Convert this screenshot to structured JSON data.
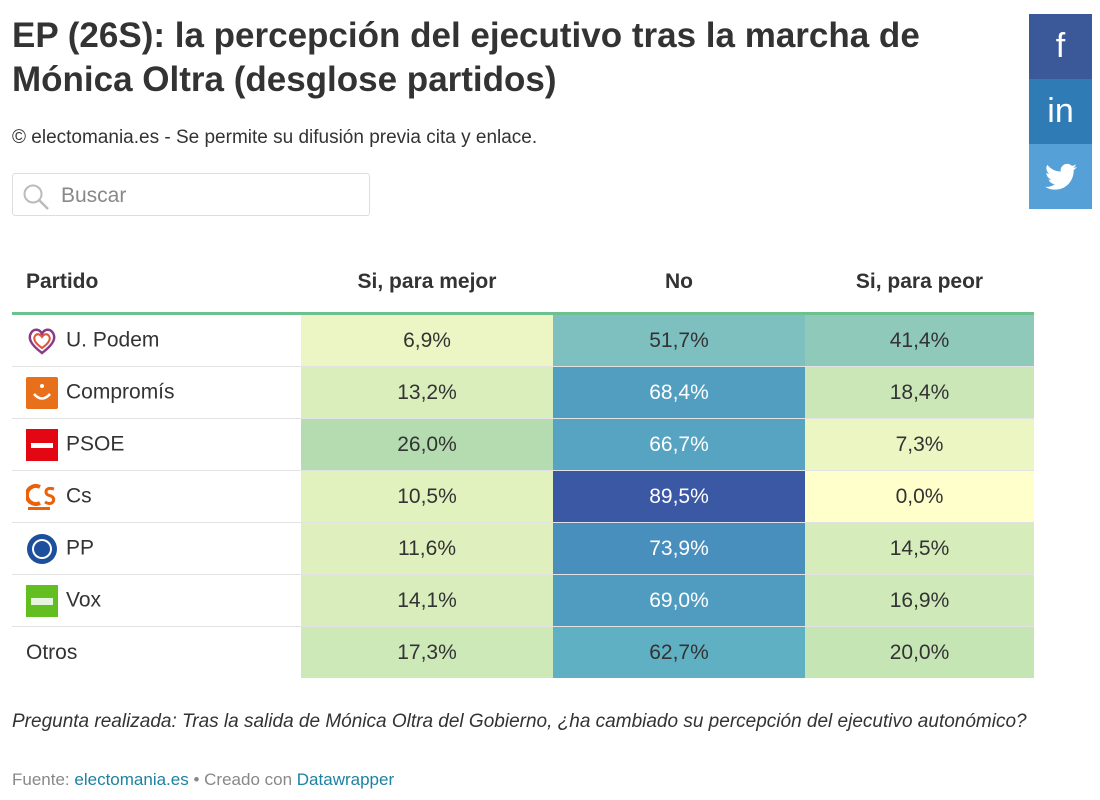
{
  "header": {
    "title": "EP (26S): la percepción del ejecutivo tras la marcha de Mónica Oltra (desglose partidos)",
    "subtitle": "© electomania.es - Se permite su difusión previa cita y enlace."
  },
  "search": {
    "placeholder": "Buscar"
  },
  "share": {
    "facebook": "f",
    "linkedin": "in"
  },
  "table": {
    "columns": [
      "Partido",
      "Si, para mejor",
      "No",
      "Si, para peor"
    ],
    "rows": [
      [
        "U. Podem",
        "6,9%",
        "51,7%",
        "41,4%"
      ],
      [
        "Compromís",
        "13,2%",
        "68,4%",
        "18,4%"
      ],
      [
        "PSOE",
        "26,0%",
        "66,7%",
        "7,3%"
      ],
      [
        "Cs",
        "10,5%",
        "89,5%",
        "0,0%"
      ],
      [
        "PP",
        "11,6%",
        "73,9%",
        "14,5%"
      ],
      [
        "Vox",
        "14,1%",
        "69,0%",
        "16,9%"
      ],
      [
        "Otros",
        "17,3%",
        "62,7%",
        "20,0%"
      ]
    ]
  },
  "footer": {
    "note": "Pregunta realizada: Tras la salida de Mónica Oltra del Gobierno, ¿ha cambiado su percepción del ejecutivo autonómico?",
    "source_label": "Fuente:",
    "source": "electomania.es",
    "made_with": "• Creado con",
    "tool": "Datawrapper"
  }
}
